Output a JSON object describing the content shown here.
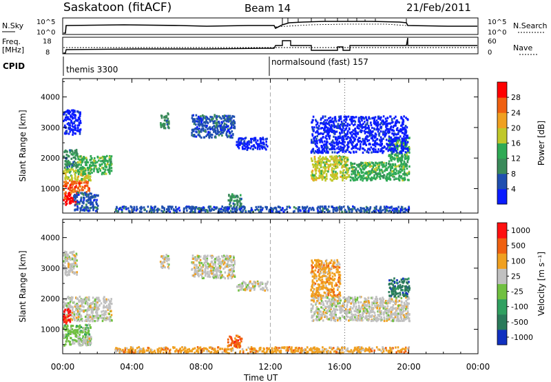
{
  "header": {
    "station": "Saskatoon (fitACF)",
    "beam": "Beam 14",
    "date": "21/Feb/2011"
  },
  "top_panels": {
    "nsky": {
      "left_label": "N.Sky",
      "right_label": "N.Search",
      "left_ticks": [
        "10^5",
        "10^0"
      ],
      "right_ticks": [
        "10^5",
        "10^0"
      ]
    },
    "freq": {
      "left_label": "Freq.",
      "left_unit": "[MHz]",
      "right_label": "Nave",
      "left_ticks": [
        "18",
        "8"
      ],
      "right_ticks": [
        "60",
        "0"
      ]
    },
    "cpid": {
      "label": "CPID",
      "modes": [
        {
          "text": "themis 3300",
          "start_hour": 0
        },
        {
          "text": "normalsound (fast) 157",
          "start_hour": 12
        }
      ]
    }
  },
  "chart_data": [
    {
      "type": "heatmap",
      "panel": "power",
      "ylabel": "Slant Range [km]",
      "y_ticks": [
        "1000",
        "2000",
        "3000",
        "4000"
      ],
      "ylim": [
        200,
        4600
      ],
      "xlim": [
        0,
        24
      ],
      "colorbar": {
        "label": "Power [dB]",
        "ticks": [
          "4",
          "8",
          "12",
          "16",
          "20",
          "24",
          "28"
        ],
        "range": [
          0,
          32
        ],
        "colors": [
          "#0a1cff",
          "#1f4fb0",
          "#3a8a5a",
          "#2faa55",
          "#c0c82a",
          "#f0a020",
          "#f06010",
          "#ff0000"
        ]
      },
      "regions": [
        {
          "t0": 0.0,
          "t1": 0.8,
          "r0": 500,
          "r1": 900,
          "level": 7
        },
        {
          "t0": 0.0,
          "t1": 1.5,
          "r0": 900,
          "r1": 1300,
          "level": 6
        },
        {
          "t0": 0.0,
          "t1": 1.6,
          "r0": 1300,
          "r1": 1700,
          "level": 4
        },
        {
          "t0": 0.8,
          "t1": 2.8,
          "r0": 1500,
          "r1": 2100,
          "level": 3
        },
        {
          "t0": 0.0,
          "t1": 0.8,
          "r0": 1700,
          "r1": 2300,
          "level": 2
        },
        {
          "t0": 0.6,
          "t1": 2.0,
          "r0": 300,
          "r1": 900,
          "level": 1
        },
        {
          "t0": 0.0,
          "t1": 1.0,
          "r0": 2800,
          "r1": 3600,
          "level": 0
        },
        {
          "t0": 5.6,
          "t1": 6.1,
          "r0": 3000,
          "r1": 3500,
          "level": 2
        },
        {
          "t0": 7.4,
          "t1": 9.9,
          "r0": 2700,
          "r1": 3450,
          "level": 1
        },
        {
          "t0": 10.0,
          "t1": 11.8,
          "r0": 2300,
          "r1": 2700,
          "level": 0
        },
        {
          "t0": 14.3,
          "t1": 16.5,
          "r0": 1300,
          "r1": 2100,
          "level": 4
        },
        {
          "t0": 16.5,
          "t1": 20.0,
          "r0": 1300,
          "r1": 1900,
          "level": 3
        },
        {
          "t0": 18.8,
          "t1": 20.0,
          "r0": 1900,
          "r1": 2700,
          "level": 3
        },
        {
          "t0": 14.3,
          "t1": 19.9,
          "r0": 2200,
          "r1": 3400,
          "level": 0
        },
        {
          "t0": 3.0,
          "t1": 20.0,
          "r0": 250,
          "r1": 450,
          "level": 1
        },
        {
          "t0": 9.5,
          "t1": 10.3,
          "r0": 450,
          "r1": 850,
          "level": 2
        }
      ]
    },
    {
      "type": "heatmap",
      "panel": "velocity",
      "ylabel": "Slant Range [km]",
      "xlabel": "Time UT",
      "x_ticks": [
        "00:00",
        "04:00",
        "08:00",
        "12:00",
        "16:00",
        "20:00",
        "00:00"
      ],
      "y_ticks": [
        "1000",
        "2000",
        "3000",
        "4000"
      ],
      "ylim": [
        200,
        4600
      ],
      "xlim": [
        0,
        24
      ],
      "colorbar": {
        "label": "Velocity [m s⁻¹]",
        "ticks": [
          "1000",
          "500",
          "100",
          "25",
          "-25",
          "-100",
          "-500",
          "-1000"
        ],
        "colors": [
          "#1030c0",
          "#2a7a5a",
          "#30a060",
          "#70c040",
          "#c0c0c0",
          "#f0a020",
          "#f06010",
          "#ff1010"
        ]
      },
      "regions": [
        {
          "t0": 0.0,
          "t1": 1.6,
          "r0": 500,
          "r1": 1200,
          "level": 3
        },
        {
          "t0": 0.8,
          "t1": 1.6,
          "r0": 500,
          "r1": 800,
          "level": 4
        },
        {
          "t0": 0.0,
          "t1": 2.8,
          "r0": 1300,
          "r1": 2100,
          "level": 4
        },
        {
          "t0": 0.0,
          "t1": 0.8,
          "r0": 2800,
          "r1": 3600,
          "level": 4
        },
        {
          "t0": 5.6,
          "t1": 6.1,
          "r0": 3000,
          "r1": 3500,
          "level": 4
        },
        {
          "t0": 7.4,
          "t1": 9.9,
          "r0": 2700,
          "r1": 3450,
          "level": 4
        },
        {
          "t0": 10.0,
          "t1": 11.8,
          "r0": 2300,
          "r1": 2600,
          "level": 4
        },
        {
          "t0": 14.3,
          "t1": 20.0,
          "r0": 1300,
          "r1": 2100,
          "level": 4
        },
        {
          "t0": 14.3,
          "t1": 16.0,
          "r0": 2100,
          "r1": 3300,
          "level": 5
        },
        {
          "t0": 18.8,
          "t1": 20.0,
          "r0": 2100,
          "r1": 2700,
          "level": 1
        },
        {
          "t0": 3.0,
          "t1": 20.0,
          "r0": 250,
          "r1": 450,
          "level": 5
        },
        {
          "t0": 9.5,
          "t1": 10.3,
          "r0": 450,
          "r1": 850,
          "level": 6
        },
        {
          "t0": 0.0,
          "t1": 0.4,
          "r0": 1200,
          "r1": 1700,
          "level": 7
        }
      ]
    }
  ]
}
